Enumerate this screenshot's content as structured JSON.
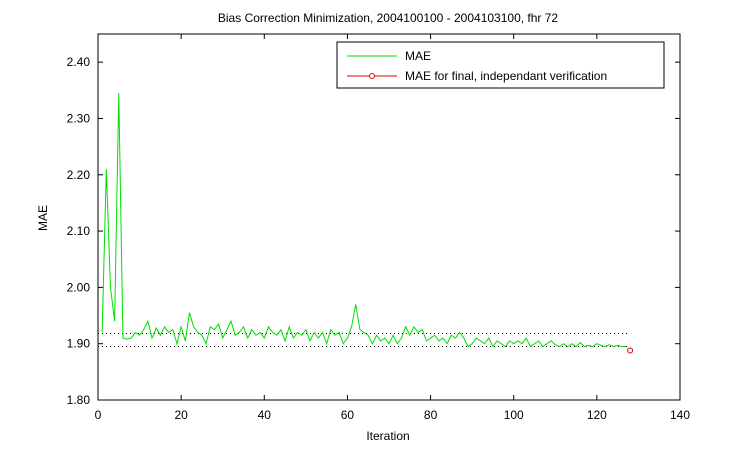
{
  "chart_data": {
    "type": "line",
    "title": "Bias Correction Minimization, 2004100100 - 2004103100, fhr 72",
    "xlabel": "Iteration",
    "ylabel": "MAE",
    "xlim": [
      0,
      140
    ],
    "ylim": [
      1.8,
      2.45
    ],
    "xticks": [
      0,
      20,
      40,
      60,
      80,
      100,
      120,
      140
    ],
    "xtick_labels": [
      "0",
      "20",
      "40",
      "60",
      "80",
      "100",
      "120",
      "140"
    ],
    "yticks": [
      1.8,
      1.9,
      2.0,
      2.1,
      2.2,
      2.3,
      2.4
    ],
    "ytick_labels": [
      "1.80",
      "1.90",
      "2.00",
      "2.10",
      "2.20",
      "2.30",
      "2.40"
    ],
    "grid": false,
    "legend_position": "top-right",
    "reference_lines": [
      {
        "y": 1.918,
        "style": "dotted",
        "color": "#000000",
        "x_range": [
          0,
          128
        ]
      },
      {
        "y": 1.895,
        "style": "dotted",
        "color": "#000000",
        "x_range": [
          0,
          128
        ]
      }
    ],
    "series": [
      {
        "name": "MAE",
        "color": "#00dd00",
        "marker": "none",
        "x": [
          1,
          2,
          3,
          4,
          5,
          6,
          7,
          8,
          9,
          10,
          11,
          12,
          13,
          14,
          15,
          16,
          17,
          18,
          19,
          20,
          21,
          22,
          23,
          24,
          25,
          26,
          27,
          28,
          29,
          30,
          31,
          32,
          33,
          34,
          35,
          36,
          37,
          38,
          39,
          40,
          41,
          42,
          43,
          44,
          45,
          46,
          47,
          48,
          49,
          50,
          51,
          52,
          53,
          54,
          55,
          56,
          57,
          58,
          59,
          60,
          61,
          62,
          63,
          64,
          65,
          66,
          67,
          68,
          69,
          70,
          71,
          72,
          73,
          74,
          75,
          76,
          77,
          78,
          79,
          80,
          81,
          82,
          83,
          84,
          85,
          86,
          87,
          88,
          89,
          90,
          91,
          92,
          93,
          94,
          95,
          96,
          97,
          98,
          99,
          100,
          101,
          102,
          103,
          104,
          105,
          106,
          107,
          108,
          109,
          110,
          111,
          112,
          113,
          114,
          115,
          116,
          117,
          118,
          119,
          120,
          121,
          122,
          123,
          124,
          125,
          126,
          127
        ],
        "y": [
          1.92,
          2.21,
          2.0,
          1.94,
          2.345,
          1.91,
          1.908,
          1.91,
          1.92,
          1.915,
          1.925,
          1.94,
          1.91,
          1.928,
          1.915,
          1.93,
          1.92,
          1.925,
          1.9,
          1.93,
          1.905,
          1.955,
          1.93,
          1.92,
          1.915,
          1.9,
          1.93,
          1.925,
          1.935,
          1.91,
          1.925,
          1.94,
          1.915,
          1.92,
          1.93,
          1.91,
          1.925,
          1.915,
          1.92,
          1.91,
          1.93,
          1.92,
          1.915,
          1.925,
          1.905,
          1.93,
          1.91,
          1.92,
          1.915,
          1.925,
          1.905,
          1.92,
          1.91,
          1.92,
          1.9,
          1.925,
          1.915,
          1.92,
          1.9,
          1.91,
          1.93,
          1.97,
          1.925,
          1.92,
          1.915,
          1.9,
          1.915,
          1.905,
          1.91,
          1.9,
          1.915,
          1.9,
          1.91,
          1.93,
          1.915,
          1.93,
          1.92,
          1.925,
          1.905,
          1.91,
          1.915,
          1.905,
          1.91,
          1.9,
          1.915,
          1.91,
          1.92,
          1.91,
          1.895,
          1.9,
          1.91,
          1.905,
          1.9,
          1.91,
          1.895,
          1.905,
          1.9,
          1.895,
          1.905,
          1.9,
          1.905,
          1.9,
          1.91,
          1.895,
          1.9,
          1.905,
          1.895,
          1.9,
          1.905,
          1.898,
          1.895,
          1.9,
          1.895,
          1.9,
          1.895,
          1.902,
          1.895,
          1.897,
          1.895,
          1.9,
          1.897,
          1.895,
          1.898,
          1.895,
          1.897,
          1.895,
          1.895
        ]
      },
      {
        "name": "MAE for final, independant verification",
        "color": "#e00000",
        "marker": "circle",
        "x": [
          128
        ],
        "y": [
          1.888
        ]
      }
    ]
  }
}
